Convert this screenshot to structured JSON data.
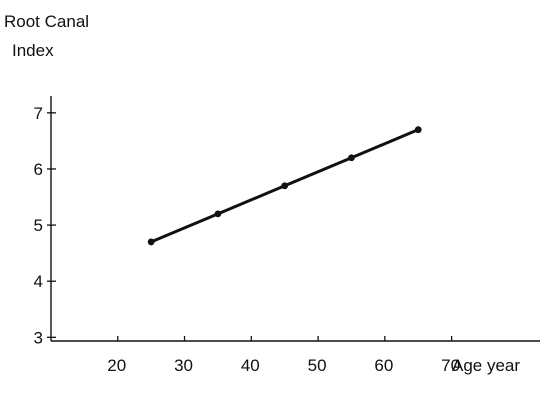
{
  "chart_data": {
    "type": "line",
    "ylabel_line1": "Root Canal",
    "ylabel_line2": "Index",
    "xlabel": "Age year",
    "x_ticks": [
      20,
      30,
      40,
      50,
      60,
      70
    ],
    "y_ticks": [
      3,
      4,
      5,
      6,
      7
    ],
    "xlim": [
      10,
      75
    ],
    "ylim": [
      2.4,
      7.3
    ],
    "grid": false,
    "series": [
      {
        "x": [
          25,
          35,
          45,
          55,
          65
        ],
        "y": [
          4.7,
          5.2,
          5.7,
          6.2,
          6.7
        ]
      }
    ]
  }
}
